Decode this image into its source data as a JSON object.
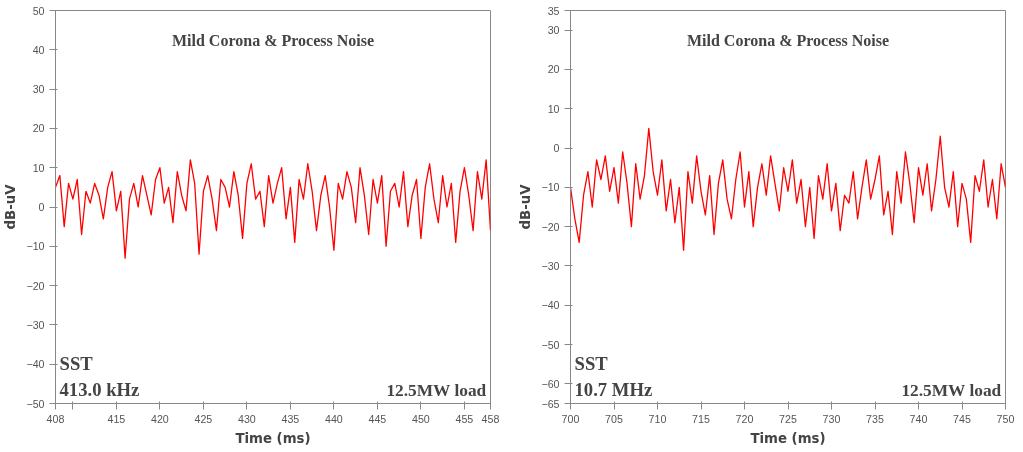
{
  "chart_data": [
    {
      "type": "line",
      "title": "Mild Corona & Process Noise",
      "xlabel": "Time (ms)",
      "ylabel": "dB-uV",
      "annotations": [
        "SST",
        "413.0 kHz",
        "12.5MW load"
      ],
      "x": [
        408,
        408.5,
        409,
        409.5,
        410,
        410.5,
        411,
        411.5,
        412,
        412.5,
        413,
        413.5,
        414,
        414.5,
        415,
        415.5,
        416,
        416.5,
        417,
        417.5,
        418,
        418.5,
        419,
        419.5,
        420,
        420.5,
        421,
        421.5,
        422,
        422.5,
        423,
        423.5,
        424,
        424.5,
        425,
        425.5,
        426,
        426.5,
        427,
        427.5,
        428,
        428.5,
        429,
        429.5,
        430,
        430.5,
        431,
        431.5,
        432,
        432.5,
        433,
        433.5,
        434,
        434.5,
        435,
        435.5,
        436,
        436.5,
        437,
        437.5,
        438,
        438.5,
        439,
        439.5,
        440,
        440.5,
        441,
        441.5,
        442,
        442.5,
        443,
        443.5,
        444,
        444.5,
        445,
        445.5,
        446,
        446.5,
        447,
        447.5,
        448,
        448.5,
        449,
        449.5,
        450,
        450.5,
        451,
        451.5,
        452,
        452.5,
        453,
        453.5,
        454,
        454.5,
        455,
        455.5,
        456,
        456.5,
        457,
        457.5,
        458
      ],
      "series": [
        {
          "color": "#ff0000",
          "values": [
            5,
            8,
            -5,
            6,
            2,
            7,
            -7,
            4,
            1,
            6,
            3,
            -3,
            5,
            9,
            -1,
            4,
            -13,
            2,
            6,
            0,
            8,
            3,
            -2,
            7,
            10,
            1,
            5,
            -4,
            9,
            3,
            -1,
            12,
            6,
            -12,
            4,
            8,
            2,
            -6,
            7,
            5,
            0,
            9,
            3,
            -8,
            6,
            11,
            2,
            4,
            -5,
            8,
            1,
            6,
            10,
            -3,
            5,
            -9,
            7,
            2,
            11,
            4,
            -6,
            3,
            8,
            0,
            -11,
            6,
            2,
            9,
            5,
            -4,
            10,
            3,
            -7,
            7,
            1,
            8,
            -10,
            4,
            6,
            0,
            9,
            -5,
            3,
            7,
            -8,
            5,
            11,
            2,
            -4,
            8,
            0,
            6,
            -9,
            4,
            10,
            3,
            -6,
            9,
            2,
            12,
            -6
          ]
        }
      ],
      "xlim": [
        408,
        458
      ],
      "xticks": [
        408,
        {
          "value": 410,
          "label": null
        },
        415,
        420,
        425,
        430,
        435,
        440,
        445,
        450,
        455,
        458
      ],
      "ylim": [
        -50,
        50
      ],
      "yticks": [
        -50,
        -40,
        -30,
        -20,
        -10,
        0,
        10,
        20,
        30,
        40,
        50
      ],
      "grid": false,
      "marker": "none",
      "line_style": "solid"
    },
    {
      "type": "line",
      "title": "Mild Corona & Process Noise",
      "xlabel": "Time (ms)",
      "ylabel": "dB-uV",
      "annotations": [
        "SST",
        "10.7 MHz",
        "12.5MW load"
      ],
      "x": [
        700,
        700.5,
        701,
        701.5,
        702,
        702.5,
        703,
        703.5,
        704,
        704.5,
        705,
        705.5,
        706,
        706.5,
        707,
        707.5,
        708,
        708.5,
        709,
        709.5,
        710,
        710.5,
        711,
        711.5,
        712,
        712.5,
        713,
        713.5,
        714,
        714.5,
        715,
        715.5,
        716,
        716.5,
        717,
        717.5,
        718,
        718.5,
        719,
        719.5,
        720,
        720.5,
        721,
        721.5,
        722,
        722.5,
        723,
        723.5,
        724,
        724.5,
        725,
        725.5,
        726,
        726.5,
        727,
        727.5,
        728,
        728.5,
        729,
        729.5,
        730,
        730.5,
        731,
        731.5,
        732,
        732.5,
        733,
        733.5,
        734,
        734.5,
        735,
        735.5,
        736,
        736.5,
        737,
        737.5,
        738,
        738.5,
        739,
        739.5,
        740,
        740.5,
        741,
        741.5,
        742,
        742.5,
        743,
        743.5,
        744,
        744.5,
        745,
        745.5,
        746,
        746.5,
        747,
        747.5,
        748,
        748.5,
        749,
        749.5,
        750
      ],
      "series": [
        {
          "color": "#ff0000",
          "values": [
            -10,
            -18,
            -24,
            -12,
            -6,
            -15,
            -3,
            -8,
            -2,
            -11,
            -5,
            -14,
            -1,
            -9,
            -20,
            -4,
            -13,
            -7,
            5,
            -6,
            -12,
            -3,
            -16,
            -8,
            -19,
            -10,
            -26,
            -6,
            -14,
            -2,
            -11,
            -17,
            -7,
            -22,
            -9,
            -3,
            -13,
            -18,
            -8,
            -1,
            -15,
            -6,
            -20,
            -10,
            -4,
            -12,
            -2,
            -9,
            -16,
            -5,
            -11,
            -3,
            -14,
            -8,
            -20,
            -10,
            -23,
            -7,
            -13,
            -4,
            -16,
            -9,
            -21,
            -12,
            -14,
            -6,
            -18,
            -10,
            -3,
            -13,
            -8,
            -2,
            -17,
            -11,
            -22,
            -6,
            -14,
            -1,
            -9,
            -19,
            -5,
            -12,
            -4,
            -16,
            -8,
            3,
            -10,
            -15,
            -6,
            -20,
            -9,
            -13,
            -24,
            -7,
            -11,
            -3,
            -15,
            -8,
            -18,
            -4,
            -10
          ]
        }
      ],
      "xlim": [
        700,
        750
      ],
      "xticks": [
        700,
        705,
        710,
        715,
        720,
        725,
        730,
        735,
        740,
        745,
        750
      ],
      "ylim": [
        -65,
        35
      ],
      "yticks": [
        -65,
        -60,
        -50,
        -40,
        -30,
        -20,
        -10,
        0,
        10,
        20,
        30,
        35
      ],
      "grid": false,
      "marker": "none",
      "line_style": "solid"
    }
  ]
}
